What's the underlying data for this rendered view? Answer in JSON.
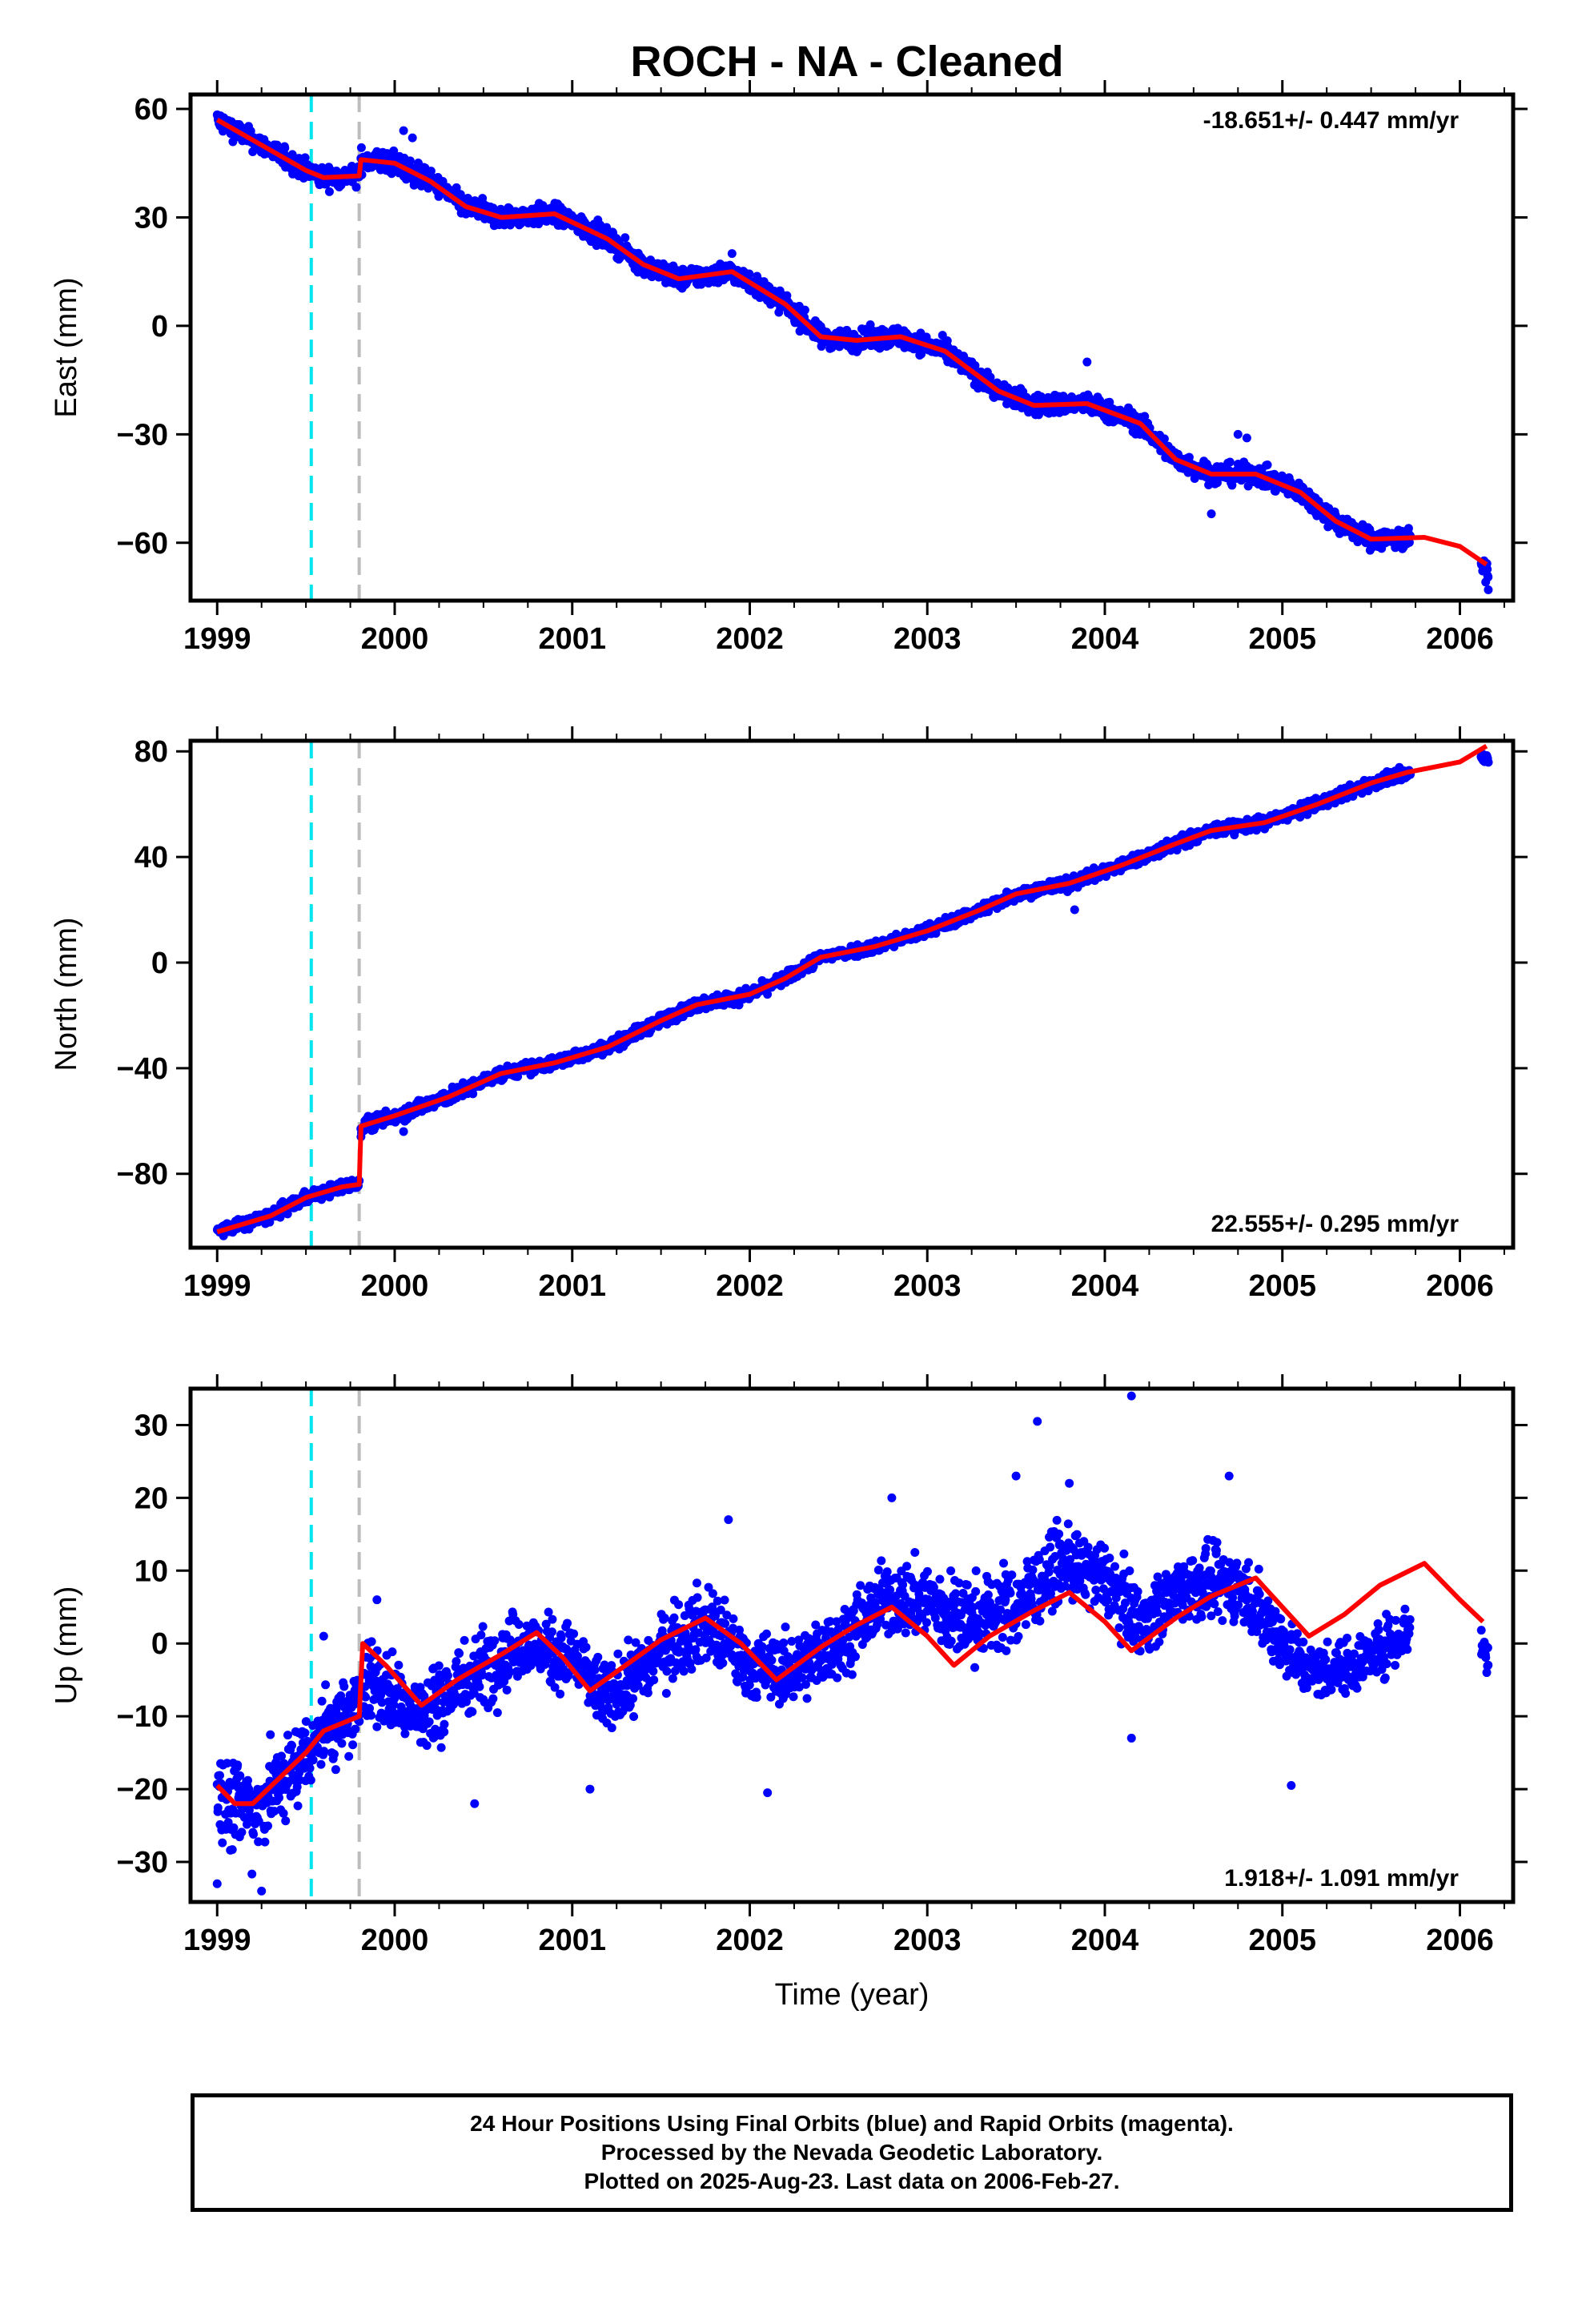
{
  "title": "ROCH  - NA - Cleaned",
  "colors": {
    "data_points": "#0000ff",
    "model_line": "#ff0000",
    "marker_cyan": "#00e5ee",
    "marker_gray": "#bdbdbd",
    "axes": "#000000"
  },
  "footer": {
    "line1": "24 Hour Positions Using Final Orbits (blue) and Rapid Orbits (magenta).",
    "line2": "Processed by the Nevada Geodetic Laboratory.",
    "line3": "Plotted on 2025-Aug-23. Last data on 2006-Feb-27."
  },
  "chart_data": [
    {
      "type": "scatter",
      "panel": "east",
      "ylabel": "East (mm)",
      "xlabel": "",
      "xlim": [
        1998.85,
        2006.3
      ],
      "ylim": [
        -76,
        64
      ],
      "yticks": [
        -60,
        -30,
        0,
        30,
        60
      ],
      "xticks": [
        1999,
        2000,
        2001,
        2002,
        2003,
        2004,
        2005,
        2006
      ],
      "rate_label": "-18.651+/- 0.447 mm/yr",
      "rate_position": "top-right",
      "vertical_markers": [
        {
          "x": 1999.53,
          "style": "cyan-dashed"
        },
        {
          "x": 1999.8,
          "style": "gray-dashed"
        }
      ],
      "model_curve": [
        [
          1999.0,
          57
        ],
        [
          1999.25,
          50
        ],
        [
          1999.5,
          43
        ],
        [
          1999.6,
          41
        ],
        [
          1999.8,
          41.5
        ],
        [
          1999.81,
          46
        ],
        [
          2000.0,
          45
        ],
        [
          2000.2,
          40
        ],
        [
          2000.4,
          33
        ],
        [
          2000.6,
          30
        ],
        [
          2000.9,
          31
        ],
        [
          2001.2,
          24
        ],
        [
          2001.4,
          17
        ],
        [
          2001.6,
          13
        ],
        [
          2001.9,
          15
        ],
        [
          2002.2,
          6
        ],
        [
          2002.4,
          -3
        ],
        [
          2002.6,
          -4
        ],
        [
          2002.85,
          -3
        ],
        [
          2003.1,
          -7
        ],
        [
          2003.4,
          -18
        ],
        [
          2003.6,
          -22
        ],
        [
          2003.9,
          -21.5
        ],
        [
          2004.2,
          -27
        ],
        [
          2004.4,
          -37
        ],
        [
          2004.6,
          -41
        ],
        [
          2004.85,
          -41
        ],
        [
          2005.1,
          -46
        ],
        [
          2005.3,
          -54
        ],
        [
          2005.5,
          -59
        ],
        [
          2005.8,
          -58.5
        ],
        [
          2006.0,
          -61
        ],
        [
          2006.15,
          -66
        ]
      ],
      "data_bands": [
        [
          1999.0,
          57,
          3
        ],
        [
          1999.25,
          50,
          3
        ],
        [
          1999.5,
          43,
          3
        ],
        [
          1999.6,
          41,
          3
        ],
        [
          1999.8,
          41.5,
          3
        ],
        [
          1999.81,
          46,
          3.5
        ],
        [
          2000.0,
          45,
          3.5
        ],
        [
          2000.2,
          40,
          3
        ],
        [
          2000.4,
          33,
          3
        ],
        [
          2000.6,
          30,
          3
        ],
        [
          2000.9,
          31,
          3
        ],
        [
          2001.2,
          24,
          3
        ],
        [
          2001.4,
          17,
          3
        ],
        [
          2001.6,
          13,
          3
        ],
        [
          2001.9,
          15,
          3
        ],
        [
          2002.2,
          6,
          3
        ],
        [
          2002.4,
          -3,
          3
        ],
        [
          2002.6,
          -4,
          3
        ],
        [
          2002.85,
          -3,
          3
        ],
        [
          2003.1,
          -7,
          3
        ],
        [
          2003.4,
          -18,
          3
        ],
        [
          2003.6,
          -22,
          3
        ],
        [
          2003.9,
          -21.5,
          3
        ],
        [
          2004.2,
          -27,
          3
        ],
        [
          2004.4,
          -37,
          3
        ],
        [
          2004.6,
          -41,
          3
        ],
        [
          2004.85,
          -41,
          3
        ],
        [
          2005.1,
          -46,
          3
        ],
        [
          2005.3,
          -54,
          3
        ],
        [
          2005.5,
          -59,
          3
        ],
        [
          2005.72,
          -59,
          3
        ],
        [
          2006.12,
          -66,
          3
        ],
        [
          2006.16,
          -68,
          3
        ]
      ],
      "data_ranges": [
        [
          1999.0,
          1999.8
        ],
        [
          1999.81,
          2005.72
        ],
        [
          2006.12,
          2006.16
        ]
      ],
      "outliers": [
        [
          2000.05,
          54
        ],
        [
          2000.1,
          52
        ],
        [
          2003.9,
          -10
        ],
        [
          2004.75,
          -30
        ],
        [
          2004.8,
          -31
        ],
        [
          2004.6,
          -52
        ],
        [
          2006.16,
          -73
        ],
        [
          2001.9,
          20
        ]
      ]
    },
    {
      "type": "scatter",
      "panel": "north",
      "ylabel": "North (mm)",
      "xlabel": "",
      "xlim": [
        1998.85,
        2006.3
      ],
      "ylim": [
        -108,
        84
      ],
      "yticks": [
        -80,
        -40,
        0,
        40,
        80
      ],
      "xticks": [
        1999,
        2000,
        2001,
        2002,
        2003,
        2004,
        2005,
        2006
      ],
      "rate_label": "22.555+/- 0.295 mm/yr",
      "rate_position": "bottom-right",
      "vertical_markers": [
        {
          "x": 1999.53,
          "style": "cyan-dashed"
        },
        {
          "x": 1999.8,
          "style": "gray-dashed"
        }
      ],
      "model_curve": [
        [
          1999.0,
          -102
        ],
        [
          1999.3,
          -96
        ],
        [
          1999.5,
          -89
        ],
        [
          1999.7,
          -85
        ],
        [
          1999.8,
          -84
        ],
        [
          1999.81,
          -62
        ],
        [
          2000.0,
          -58
        ],
        [
          2000.3,
          -51
        ],
        [
          2000.6,
          -42
        ],
        [
          2000.9,
          -38
        ],
        [
          2001.2,
          -32
        ],
        [
          2001.5,
          -22
        ],
        [
          2001.7,
          -16
        ],
        [
          2002.0,
          -12
        ],
        [
          2002.2,
          -6
        ],
        [
          2002.4,
          2
        ],
        [
          2002.7,
          6
        ],
        [
          2003.0,
          12
        ],
        [
          2003.3,
          20
        ],
        [
          2003.5,
          26
        ],
        [
          2003.8,
          30
        ],
        [
          2004.1,
          37
        ],
        [
          2004.4,
          45
        ],
        [
          2004.6,
          50
        ],
        [
          2004.9,
          53
        ],
        [
          2005.2,
          60
        ],
        [
          2005.5,
          68
        ],
        [
          2005.7,
          72
        ],
        [
          2006.0,
          76
        ],
        [
          2006.15,
          82
        ]
      ],
      "data_bands": [
        [
          1999.0,
          -102,
          2.5
        ],
        [
          1999.3,
          -96,
          2.5
        ],
        [
          1999.5,
          -89,
          2.5
        ],
        [
          1999.7,
          -85,
          2.5
        ],
        [
          1999.8,
          -84,
          2.5
        ],
        [
          1999.81,
          -62,
          3
        ],
        [
          2000.0,
          -58,
          3
        ],
        [
          2000.3,
          -51,
          3
        ],
        [
          2000.6,
          -42,
          2.5
        ],
        [
          2000.9,
          -38,
          2.5
        ],
        [
          2001.2,
          -32,
          2.5
        ],
        [
          2001.5,
          -22,
          2.5
        ],
        [
          2001.7,
          -16,
          2.5
        ],
        [
          2002.0,
          -12,
          2.5
        ],
        [
          2002.2,
          -6,
          2.5
        ],
        [
          2002.4,
          2,
          2.5
        ],
        [
          2002.7,
          6,
          2.5
        ],
        [
          2003.0,
          12,
          2.5
        ],
        [
          2003.3,
          20,
          2.5
        ],
        [
          2003.5,
          26,
          2.5
        ],
        [
          2003.8,
          30,
          2.5
        ],
        [
          2004.1,
          37,
          2.5
        ],
        [
          2004.4,
          45,
          2.5
        ],
        [
          2004.6,
          50,
          2.5
        ],
        [
          2004.9,
          53,
          2.5
        ],
        [
          2005.2,
          60,
          2.5
        ],
        [
          2005.5,
          68,
          2.5
        ],
        [
          2005.72,
          72,
          2.5
        ],
        [
          2006.12,
          78,
          2
        ],
        [
          2006.16,
          77,
          2
        ]
      ],
      "data_ranges": [
        [
          1999.0,
          1999.8
        ],
        [
          1999.81,
          2005.72
        ],
        [
          2006.12,
          2006.16
        ]
      ],
      "outliers": [
        [
          2003.83,
          20
        ],
        [
          1999.81,
          -66
        ],
        [
          2000.05,
          -64
        ]
      ]
    },
    {
      "type": "scatter",
      "panel": "up",
      "ylabel": "Up (mm)",
      "xlabel": "Time (year)",
      "xlim": [
        1998.85,
        2006.3
      ],
      "ylim": [
        -35.5,
        35
      ],
      "yticks": [
        -30,
        -20,
        -10,
        0,
        10,
        20,
        30
      ],
      "xticks": [
        1999,
        2000,
        2001,
        2002,
        2003,
        2004,
        2005,
        2006
      ],
      "rate_label": "1.918+/- 1.091 mm/yr",
      "rate_position": "bottom-right",
      "vertical_markers": [
        {
          "x": 1999.53,
          "style": "cyan-dashed"
        },
        {
          "x": 1999.8,
          "style": "gray-dashed"
        }
      ],
      "model_curve": [
        [
          1999.0,
          -19.5
        ],
        [
          1999.1,
          -22
        ],
        [
          1999.2,
          -22
        ],
        [
          1999.35,
          -18.5
        ],
        [
          1999.5,
          -15
        ],
        [
          1999.6,
          -12
        ],
        [
          1999.8,
          -10
        ],
        [
          1999.82,
          0
        ],
        [
          1999.95,
          -3
        ],
        [
          2000.15,
          -8.5
        ],
        [
          2000.35,
          -5
        ],
        [
          2000.6,
          -1.5
        ],
        [
          2000.8,
          1.5
        ],
        [
          2000.95,
          -2
        ],
        [
          2001.1,
          -6.5
        ],
        [
          2001.3,
          -3
        ],
        [
          2001.5,
          0.5
        ],
        [
          2001.75,
          3.5
        ],
        [
          2001.95,
          0
        ],
        [
          2002.15,
          -5
        ],
        [
          2002.4,
          -0.5
        ],
        [
          2002.6,
          2.5
        ],
        [
          2002.8,
          5
        ],
        [
          2003.0,
          1
        ],
        [
          2003.15,
          -3
        ],
        [
          2003.35,
          1
        ],
        [
          2003.6,
          4.5
        ],
        [
          2003.8,
          7
        ],
        [
          2004.0,
          3
        ],
        [
          2004.15,
          -1
        ],
        [
          2004.4,
          3.5
        ],
        [
          2004.6,
          6.5
        ],
        [
          2004.85,
          9
        ],
        [
          2005.0,
          5
        ],
        [
          2005.15,
          1
        ],
        [
          2005.35,
          4
        ],
        [
          2005.55,
          8
        ],
        [
          2005.8,
          11
        ],
        [
          2006.0,
          6
        ],
        [
          2006.13,
          3
        ]
      ],
      "data_bands": [
        [
          1999.0,
          -20,
          7
        ],
        [
          1999.2,
          -23,
          7
        ],
        [
          1999.4,
          -18,
          6
        ],
        [
          1999.6,
          -12,
          6
        ],
        [
          1999.8,
          -9,
          6
        ],
        [
          1999.82,
          -4,
          6
        ],
        [
          2000.15,
          -10,
          6
        ],
        [
          2000.4,
          -5,
          6
        ],
        [
          2000.7,
          0,
          5
        ],
        [
          2001.0,
          -2,
          5
        ],
        [
          2001.2,
          -8,
          5
        ],
        [
          2001.5,
          -1,
          5
        ],
        [
          2001.75,
          3,
          6
        ],
        [
          2002.0,
          -3,
          5
        ],
        [
          2002.2,
          -4,
          5
        ],
        [
          2002.5,
          0,
          5
        ],
        [
          2002.75,
          6,
          5
        ],
        [
          2003.0,
          6,
          6
        ],
        [
          2003.2,
          3,
          6
        ],
        [
          2003.5,
          5,
          6
        ],
        [
          2003.75,
          11,
          5
        ],
        [
          2004.0,
          9,
          5
        ],
        [
          2004.2,
          3,
          5
        ],
        [
          2004.45,
          8,
          5
        ],
        [
          2004.75,
          8,
          5
        ],
        [
          2004.95,
          2,
          5
        ],
        [
          2005.15,
          -4,
          4
        ],
        [
          2005.4,
          -3,
          4
        ],
        [
          2005.72,
          2,
          4
        ],
        [
          2006.12,
          0,
          3
        ],
        [
          2006.16,
          -2,
          3
        ]
      ],
      "data_ranges": [
        [
          1999.0,
          1999.8
        ],
        [
          1999.82,
          2005.72
        ],
        [
          2006.12,
          2006.16
        ]
      ],
      "outliers": [
        [
          2003.62,
          30.5
        ],
        [
          2004.15,
          34
        ],
        [
          2003.5,
          23
        ],
        [
          2002.8,
          20
        ],
        [
          2003.8,
          22
        ],
        [
          2004.7,
          23
        ],
        [
          2001.88,
          17
        ],
        [
          2002.1,
          -20.5
        ],
        [
          1999.0,
          -33
        ],
        [
          1999.25,
          -34
        ],
        [
          2000.45,
          -22
        ],
        [
          2005.05,
          -19.5
        ],
        [
          2001.1,
          -20
        ],
        [
          2004.15,
          -13
        ],
        [
          1999.6,
          1
        ],
        [
          1999.9,
          6
        ]
      ]
    }
  ]
}
